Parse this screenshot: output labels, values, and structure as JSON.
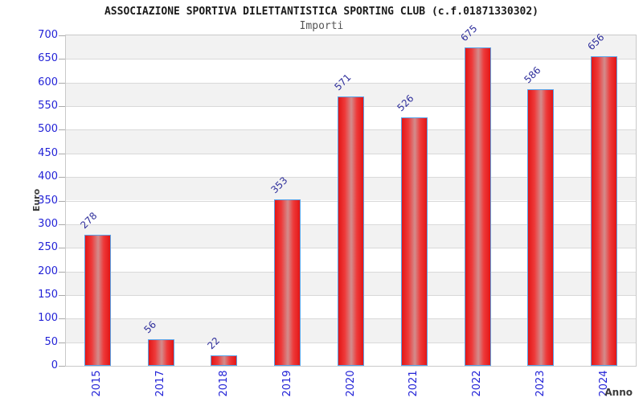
{
  "chart_data": {
    "type": "bar",
    "title": "ASSOCIAZIONE SPORTIVA DILETTANTISTICA SPORTING CLUB (c.f.01871330302)",
    "subtitle": "Importi",
    "xlabel": "Anno",
    "ylabel": "Euro",
    "categories": [
      "2015",
      "2017",
      "2018",
      "2019",
      "2020",
      "2021",
      "2022",
      "2023",
      "2024"
    ],
    "values": [
      278,
      56,
      22,
      353,
      571,
      526,
      675,
      586,
      656
    ],
    "ylim": [
      0,
      700
    ],
    "ytick_step": 50,
    "grid": "horizontal gridlines with alternating gray/white bands",
    "legend_position": "none",
    "colors": {
      "bar_fill": "#e31616",
      "bar_fill_mid": "#ee3a3a",
      "bar_highlight": "#d28c8c",
      "bar_border": "#58a2e8",
      "tick_label": "#2323d7",
      "value_label": "#30309c",
      "band_gray": "#f2f2f2",
      "band_white": "#ffffff",
      "gridline": "#d9d9d9",
      "plot_border": "#c9c9c9",
      "axis_title": "#3c3c3c",
      "title_color": "#1a1a1a",
      "subtitle_color": "#555555"
    }
  }
}
